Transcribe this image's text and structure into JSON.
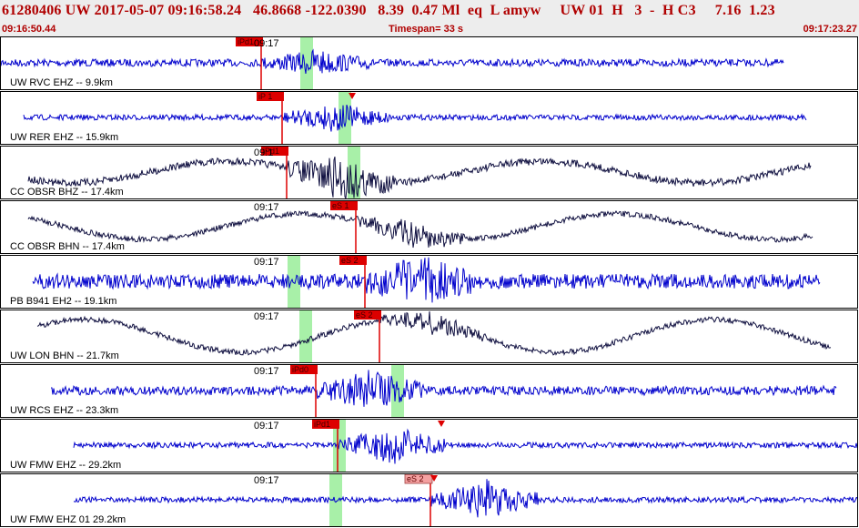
{
  "header": {
    "event_line": "61280406 UW 2017-05-07 09:16:58.24   46.8668 -122.0390   8.39  0.47 Ml  eq  L amyw     UW 01  H   3  -  H C3     7.16  1.23",
    "time_start": "09:16:50.44",
    "timespan": "Timespan=  33 s",
    "time_end": "09:17:23.27"
  },
  "colors": {
    "blue_trace": "#0000cc",
    "dark_trace": "#101040",
    "pick": "#dd0000",
    "pick_light": "#f4a0a0",
    "window": "#a8f0a8",
    "header_text": "#b00000"
  },
  "panels": [
    {
      "channel": "UW RVC EHZ -- 9.9km",
      "tick": "09:17",
      "trace_color": "blue",
      "amp": 4,
      "burst": 3,
      "start": 0,
      "end": 860,
      "drift": 0,
      "picks": [
        {
          "label": "iPd1",
          "x": 286,
          "flag": "dark"
        }
      ],
      "window_x": 336,
      "tri_x": null
    },
    {
      "channel": "UW RER EHZ -- 15.9km",
      "tick": "",
      "trace_color": "blue",
      "amp": 3,
      "burst": 5,
      "start": 25,
      "end": 885,
      "drift": 0,
      "picks": [
        {
          "label": "iP 1",
          "x": 309,
          "flag": "dark"
        }
      ],
      "window_x": 378,
      "tri_x": 386
    },
    {
      "channel": "CC OBSR BHZ -- 17.4km",
      "tick": "09:1",
      "trace_color": "dark",
      "amp": 4,
      "burst": 6,
      "start": 30,
      "end": 890,
      "drift": 12,
      "picks": [
        {
          "label": "iPd1",
          "x": 314,
          "flag": "dark"
        }
      ],
      "window_x": 388,
      "tri_x": null
    },
    {
      "channel": "CC OBSR BHN -- 17.4km",
      "tick": "09:17",
      "trace_color": "dark",
      "amp": 3,
      "burst": 5,
      "start": 30,
      "end": 892,
      "drift": 14,
      "picks": [
        {
          "label": "eS 1",
          "x": 390,
          "flag": "dark"
        }
      ],
      "window_x": null,
      "tri_x": null
    },
    {
      "channel": "PB B941 EH2 -- 19.1km",
      "tick": "09:17",
      "trace_color": "blue",
      "amp": 8,
      "burst": 3,
      "start": 35,
      "end": 900,
      "drift": 0,
      "picks": [
        {
          "label": "eS 2",
          "x": 400,
          "flag": "dark"
        }
      ],
      "window_x": 322,
      "tri_x": null
    },
    {
      "channel": "UW LON BHN -- 21.7km",
      "tick": "09:17",
      "trace_color": "dark",
      "amp": 3,
      "burst": 4,
      "start": 40,
      "end": 912,
      "drift": 18,
      "picks": [
        {
          "label": "eS 2",
          "x": 416,
          "flag": "dark"
        }
      ],
      "window_x": 335,
      "tri_x": null
    },
    {
      "channel": "UW RCS EHZ -- 23.3km",
      "tick": "09:17",
      "trace_color": "blue",
      "amp": 5,
      "burst": 4,
      "start": 55,
      "end": 918,
      "drift": 0,
      "picks": [
        {
          "label": "iPd0",
          "x": 346,
          "flag": "dark"
        }
      ],
      "window_x": 436,
      "tri_x": null
    },
    {
      "channel": "UW FMW EHZ -- 29.2km",
      "tick": "09:17",
      "trace_color": "blue",
      "amp": 3,
      "burst": 7,
      "start": 80,
      "end": 942,
      "drift": 0,
      "picks": [
        {
          "label": "iPd1",
          "x": 370,
          "flag": "dark"
        }
      ],
      "window_x": 372,
      "tri_x": 484
    },
    {
      "channel": "UW FMW EHZ 01 29.2km",
      "tick": "09:17",
      "trace_color": "blue",
      "amp": 3,
      "burst": 7,
      "start": 80,
      "end": 942,
      "drift": 0,
      "picks": [
        {
          "label": "eS 2",
          "x": 472,
          "flag": "light"
        }
      ],
      "window_x": 368,
      "tri_x": 476
    }
  ]
}
